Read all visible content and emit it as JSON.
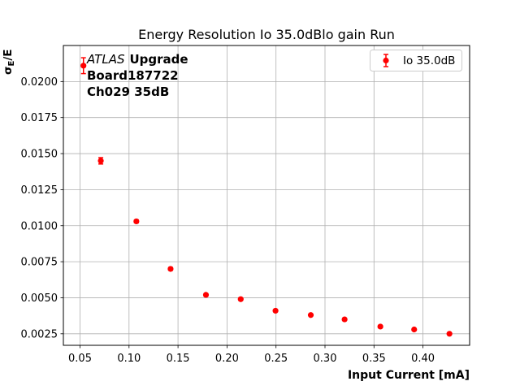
{
  "figure": {
    "background": "#ffffff"
  },
  "chart_data": {
    "type": "scatter",
    "title": "Energy Resolution Io 35.0dBlo gain Run",
    "xlabel": "Input Current [mA]",
    "ylabel": "σE/E",
    "ylabel_parts": {
      "sigma": "σ",
      "sub": "E",
      "rest": "/E"
    },
    "xlim": [
      0.033,
      0.4476
    ],
    "ylim": [
      0.0017,
      0.0225
    ],
    "x_ticks": [
      0.05,
      0.1,
      0.15,
      0.2,
      0.25,
      0.3,
      0.35,
      0.4
    ],
    "x_tick_labels": [
      "0.05",
      "0.10",
      "0.15",
      "0.20",
      "0.25",
      "0.30",
      "0.35",
      "0.40"
    ],
    "y_ticks": [
      0.0025,
      0.005,
      0.0075,
      0.01,
      0.0125,
      0.015,
      0.0175,
      0.02
    ],
    "y_tick_labels": [
      "0.0025",
      "0.0050",
      "0.0075",
      "0.0100",
      "0.0125",
      "0.0150",
      "0.0175",
      "0.0200"
    ],
    "grid": true,
    "legend": {
      "label": "Io 35.0dB",
      "position": "upper right"
    },
    "annotation": {
      "atlas": "ATLAS",
      "line1_rest": "Upgrade",
      "line2": "Board187722",
      "line3": "Ch029 35dB"
    },
    "series": [
      {
        "name": "Io 35.0dB",
        "color": "#ff0000",
        "marker": "o",
        "x": [
          0.0535,
          0.0712,
          0.1075,
          0.1424,
          0.1785,
          0.214,
          0.2495,
          0.2855,
          0.32,
          0.3565,
          0.391,
          0.427
        ],
        "y": [
          0.0211,
          0.0145,
          0.0103,
          0.007,
          0.0052,
          0.0049,
          0.0041,
          0.0038,
          0.0035,
          0.003,
          0.0028,
          0.0025
        ],
        "yerr": [
          0.00055,
          0.00022,
          0.0001,
          0.0001,
          8e-05,
          8e-05,
          6e-05,
          6e-05,
          5e-05,
          5e-05,
          5e-05,
          5e-05
        ]
      }
    ],
    "colors": {
      "grid": "#b0b0b0",
      "axis": "#000000",
      "legend_border": "#cccccc",
      "marker": "#ff0000"
    }
  }
}
